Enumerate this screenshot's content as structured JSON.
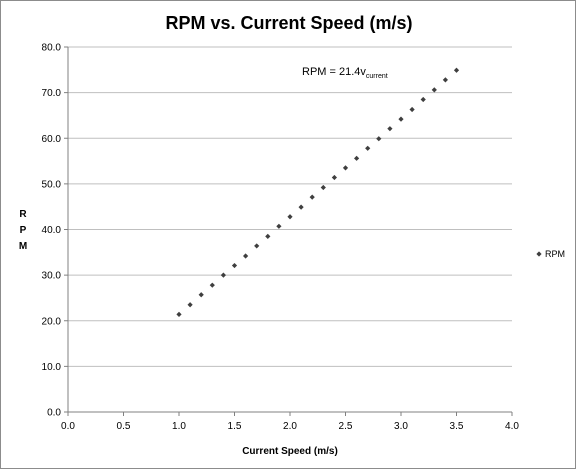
{
  "chart_data": {
    "type": "scatter",
    "title": "RPM vs. Current Speed (m/s)",
    "xlabel": "Current Speed (m/s)",
    "ylabel": "RPM",
    "xlim": [
      0.0,
      4.0
    ],
    "ylim": [
      0.0,
      80.0
    ],
    "x_ticks": [
      "0.0",
      "0.5",
      "1.0",
      "1.5",
      "2.0",
      "2.5",
      "3.0",
      "3.5",
      "4.0"
    ],
    "y_ticks": [
      "0.0",
      "10.0",
      "20.0",
      "30.0",
      "40.0",
      "50.0",
      "60.0",
      "70.0",
      "80.0"
    ],
    "grid": "horizontal",
    "legend_position": "right",
    "annotation": {
      "text": "RPM = 21.4v",
      "subscript": "current"
    },
    "marker_color": "#3f3f3f",
    "gridline_color": "#bfbfbf",
    "series": [
      {
        "name": "RPM",
        "x": [
          1.0,
          1.1,
          1.2,
          1.3,
          1.4,
          1.5,
          1.6,
          1.7,
          1.8,
          1.9,
          2.0,
          2.1,
          2.2,
          2.3,
          2.4,
          2.5,
          2.6,
          2.7,
          2.8,
          2.9,
          3.0,
          3.1,
          3.2,
          3.3,
          3.4,
          3.5
        ],
        "y": [
          21.4,
          23.5,
          25.7,
          27.8,
          30.0,
          32.1,
          34.2,
          36.4,
          38.5,
          40.7,
          42.8,
          44.9,
          47.1,
          49.2,
          51.4,
          53.5,
          55.6,
          57.8,
          59.9,
          62.1,
          64.2,
          66.3,
          68.5,
          70.6,
          72.8,
          74.9
        ]
      }
    ]
  }
}
